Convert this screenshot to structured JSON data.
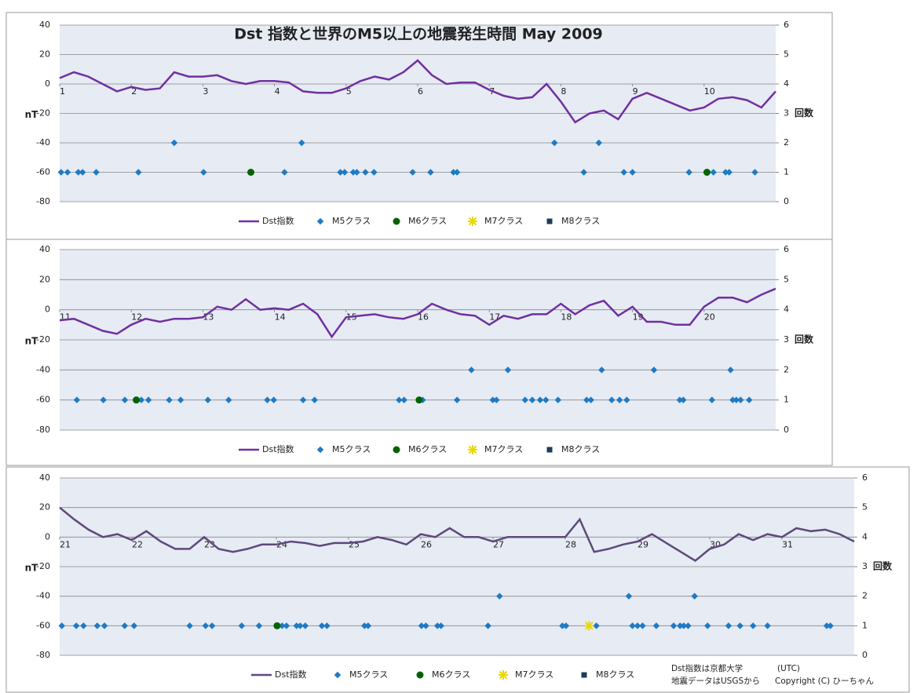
{
  "chart_data": [
    {
      "type": "line",
      "title": "Dst 指数と世界のM5以上の地震発生時間  May 2009",
      "ylabel": "nT",
      "y2label": "回数",
      "xlim": [
        1,
        11
      ],
      "xticks": [
        1,
        2,
        3,
        4,
        5,
        6,
        7,
        8,
        9,
        10
      ],
      "ylim": [
        -80,
        40
      ],
      "yticks": [
        -80,
        -60,
        -40,
        -20,
        0,
        20,
        40
      ],
      "y2lim": [
        0,
        6
      ],
      "y2ticks": [
        0,
        1,
        2,
        3,
        4,
        5,
        6
      ],
      "grid": true,
      "series": [
        {
          "name": "Dst指数",
          "color": "#7030a0",
          "marker": "line",
          "x": [
            1.0,
            1.2,
            1.4,
            1.6,
            1.8,
            2.0,
            2.2,
            2.4,
            2.6,
            2.8,
            3.0,
            3.2,
            3.4,
            3.6,
            3.8,
            4.0,
            4.2,
            4.4,
            4.6,
            4.8,
            5.0,
            5.2,
            5.4,
            5.6,
            5.8,
            6.0,
            6.2,
            6.4,
            6.6,
            6.8,
            7.0,
            7.2,
            7.4,
            7.6,
            7.8,
            8.0,
            8.2,
            8.4,
            8.6,
            8.8,
            9.0,
            9.2,
            9.4,
            9.6,
            9.8,
            10.0,
            10.2,
            10.4,
            10.6,
            10.8,
            11.0
          ],
          "values": [
            4,
            8,
            5,
            0,
            -5,
            -2,
            -4,
            -3,
            8,
            5,
            5,
            6,
            2,
            0,
            2,
            2,
            1,
            -5,
            -6,
            -6,
            -3,
            2,
            5,
            3,
            8,
            16,
            6,
            0,
            1,
            1,
            -4,
            -8,
            -10,
            -9,
            0,
            -12,
            -26,
            -20,
            -18,
            -24,
            -10,
            -6,
            -10,
            -14,
            -18,
            -16,
            -10,
            -9,
            -11,
            -16,
            -5
          ]
        },
        {
          "name": "M5クラス",
          "color": "#1f7ac4",
          "marker": "diamond",
          "axis": "y2",
          "x": [
            1.02,
            1.11,
            1.26,
            1.32,
            1.51,
            2.1,
            3.01,
            4.14,
            4.92,
            4.98,
            5.1,
            5.15,
            5.27,
            5.39,
            5.93,
            6.18,
            6.5,
            6.55,
            8.32,
            8.88,
            9.0,
            9.79,
            10.13,
            10.3,
            10.35,
            10.71,
            2.6,
            4.38,
            7.91,
            8.53
          ],
          "values": [
            1,
            1,
            1,
            1,
            1,
            1,
            1,
            1,
            1,
            1,
            1,
            1,
            1,
            1,
            1,
            1,
            1,
            1,
            1,
            1,
            1,
            1,
            1,
            1,
            1,
            1,
            2,
            2,
            2,
            2
          ]
        },
        {
          "name": "M6クラス",
          "color": "#006400",
          "marker": "circle",
          "axis": "y2",
          "x": [
            3.67,
            10.04
          ],
          "values": [
            1,
            1
          ]
        },
        {
          "name": "M7クラス",
          "color": "#e8d800",
          "marker": "star",
          "axis": "y2",
          "x": [],
          "values": []
        },
        {
          "name": "M8クラス",
          "color": "#1f3b5a",
          "marker": "square",
          "axis": "y2",
          "x": [],
          "values": []
        }
      ]
    },
    {
      "type": "line",
      "ylabel": "nT",
      "y2label": "回数",
      "xlim": [
        11,
        21
      ],
      "xticks": [
        11,
        12,
        13,
        14,
        15,
        16,
        17,
        18,
        19,
        20
      ],
      "ylim": [
        -80,
        40
      ],
      "yticks": [
        -80,
        -60,
        -40,
        -20,
        0,
        20,
        40
      ],
      "y2lim": [
        0,
        6
      ],
      "y2ticks": [
        0,
        1,
        2,
        3,
        4,
        5,
        6
      ],
      "grid": true,
      "series": [
        {
          "name": "Dst指数",
          "color": "#7030a0",
          "marker": "line",
          "x": [
            11.0,
            11.2,
            11.4,
            11.6,
            11.8,
            12.0,
            12.2,
            12.4,
            12.6,
            12.8,
            13.0,
            13.2,
            13.4,
            13.6,
            13.8,
            14.0,
            14.2,
            14.4,
            14.6,
            14.8,
            15.0,
            15.2,
            15.4,
            15.6,
            15.8,
            16.0,
            16.2,
            16.4,
            16.6,
            16.8,
            17.0,
            17.2,
            17.4,
            17.6,
            17.8,
            18.0,
            18.2,
            18.4,
            18.6,
            18.8,
            19.0,
            19.2,
            19.4,
            19.6,
            19.8,
            20.0,
            20.2,
            20.4,
            20.6,
            20.8,
            21.0
          ],
          "values": [
            -7,
            -6,
            -10,
            -14,
            -16,
            -10,
            -6,
            -8,
            -6,
            -6,
            -5,
            2,
            0,
            7,
            0,
            1,
            0,
            4,
            -3,
            -18,
            -5,
            -4,
            -3,
            -5,
            -6,
            -3,
            4,
            0,
            -3,
            -4,
            -10,
            -4,
            -6,
            -3,
            -3,
            4,
            -3,
            3,
            6,
            -4,
            2,
            -8,
            -8,
            -10,
            -10,
            2,
            8,
            8,
            5,
            10,
            14
          ]
        },
        {
          "name": "M5クラス",
          "color": "#1f7ac4",
          "marker": "diamond",
          "axis": "y2",
          "x": [
            11.24,
            11.61,
            11.91,
            12.09,
            12.14,
            12.24,
            12.53,
            12.69,
            13.07,
            13.36,
            13.9,
            13.99,
            14.4,
            14.56,
            15.74,
            15.81,
            16.07,
            16.55,
            17.05,
            17.1,
            17.5,
            17.6,
            17.71,
            17.79,
            17.96,
            18.36,
            18.42,
            18.71,
            18.82,
            18.92,
            19.66,
            19.71,
            20.11,
            20.4,
            20.45,
            20.51,
            20.63,
            16.75,
            17.26,
            18.57,
            19.3,
            20.37
          ],
          "values": [
            1,
            1,
            1,
            1,
            1,
            1,
            1,
            1,
            1,
            1,
            1,
            1,
            1,
            1,
            1,
            1,
            1,
            1,
            1,
            1,
            1,
            1,
            1,
            1,
            1,
            1,
            1,
            1,
            1,
            1,
            1,
            1,
            1,
            1,
            1,
            1,
            1,
            2,
            2,
            2,
            2,
            2
          ]
        },
        {
          "name": "M6クラス",
          "color": "#006400",
          "marker": "circle",
          "axis": "y2",
          "x": [
            12.07,
            16.02
          ],
          "values": [
            1,
            1
          ]
        },
        {
          "name": "M7クラス",
          "color": "#e8d800",
          "marker": "star",
          "axis": "y2",
          "x": [],
          "values": []
        },
        {
          "name": "M8クラス",
          "color": "#1f3b5a",
          "marker": "square",
          "axis": "y2",
          "x": [],
          "values": []
        }
      ]
    },
    {
      "type": "line",
      "ylabel": "nT",
      "y2label": "回数",
      "xlim": [
        21,
        32
      ],
      "xticks": [
        21,
        22,
        23,
        24,
        25,
        26,
        27,
        28,
        29,
        30,
        31
      ],
      "ylim": [
        -80,
        40
      ],
      "yticks": [
        -80,
        -60,
        -40,
        -20,
        0,
        20,
        40
      ],
      "y2lim": [
        0,
        6
      ],
      "y2ticks": [
        0,
        1,
        2,
        3,
        4,
        5,
        6
      ],
      "grid": true,
      "notes": [
        "Dst指数は京都大学",
        "(UTC)",
        "地震データはUSGSから",
        "Copyright (C) ひーちゃん"
      ],
      "series": [
        {
          "name": "Dst指数",
          "color": "#5f497a",
          "marker": "line",
          "x": [
            21.0,
            21.2,
            21.4,
            21.6,
            21.8,
            22.0,
            22.2,
            22.4,
            22.6,
            22.8,
            23.0,
            23.2,
            23.4,
            23.6,
            23.8,
            24.0,
            24.2,
            24.4,
            24.6,
            24.8,
            25.0,
            25.2,
            25.4,
            25.6,
            25.8,
            26.0,
            26.2,
            26.4,
            26.6,
            26.8,
            27.0,
            27.2,
            27.4,
            27.6,
            27.8,
            28.0,
            28.2,
            28.4,
            28.6,
            28.8,
            29.0,
            29.2,
            29.4,
            29.6,
            29.8,
            30.0,
            30.2,
            30.4,
            30.6,
            30.8,
            31.0,
            31.2,
            31.4,
            31.6,
            31.8,
            32.0
          ],
          "values": [
            20,
            12,
            5,
            0,
            2,
            -2,
            4,
            -3,
            -8,
            -8,
            0,
            -8,
            -10,
            -8,
            -5,
            -5,
            -3,
            -4,
            -6,
            -4,
            -4,
            -3,
            0,
            -2,
            -5,
            2,
            0,
            6,
            0,
            0,
            -3,
            0,
            0,
            0,
            0,
            0,
            12,
            -10,
            -8,
            -5,
            -3,
            2,
            -4,
            -10,
            -16,
            -8,
            -5,
            2,
            -2,
            2,
            0,
            6,
            4,
            5,
            2,
            -3
          ]
        },
        {
          "name": "M5クラス",
          "color": "#1f7ac4",
          "marker": "diamond",
          "axis": "y2",
          "x": [
            21.03,
            21.23,
            21.33,
            21.52,
            21.62,
            21.9,
            22.03,
            22.8,
            23.02,
            23.11,
            23.52,
            23.76,
            24.08,
            24.14,
            24.28,
            24.33,
            24.4,
            24.63,
            24.7,
            25.22,
            25.27,
            26.01,
            26.07,
            26.23,
            26.28,
            26.93,
            27.96,
            28.01,
            28.43,
            28.93,
            29.0,
            29.07,
            29.26,
            29.5,
            29.59,
            29.64,
            29.7,
            29.97,
            30.26,
            30.42,
            30.6,
            30.8,
            31.62,
            31.67,
            27.09,
            28.88,
            29.79
          ],
          "values": [
            1,
            1,
            1,
            1,
            1,
            1,
            1,
            1,
            1,
            1,
            1,
            1,
            1,
            1,
            1,
            1,
            1,
            1,
            1,
            1,
            1,
            1,
            1,
            1,
            1,
            1,
            1,
            1,
            1,
            1,
            1,
            1,
            1,
            1,
            1,
            1,
            1,
            1,
            1,
            1,
            1,
            1,
            1,
            1,
            2,
            2,
            2
          ]
        },
        {
          "name": "M6クラス",
          "color": "#006400",
          "marker": "circle",
          "axis": "y2",
          "x": [
            24.01
          ],
          "values": [
            1
          ]
        },
        {
          "name": "M7クラス",
          "color": "#e8d800",
          "marker": "star",
          "axis": "y2",
          "x": [
            28.33
          ],
          "values": [
            1
          ]
        },
        {
          "name": "M8クラス",
          "color": "#1f3b5a",
          "marker": "square",
          "axis": "y2",
          "x": [],
          "values": []
        }
      ]
    }
  ]
}
